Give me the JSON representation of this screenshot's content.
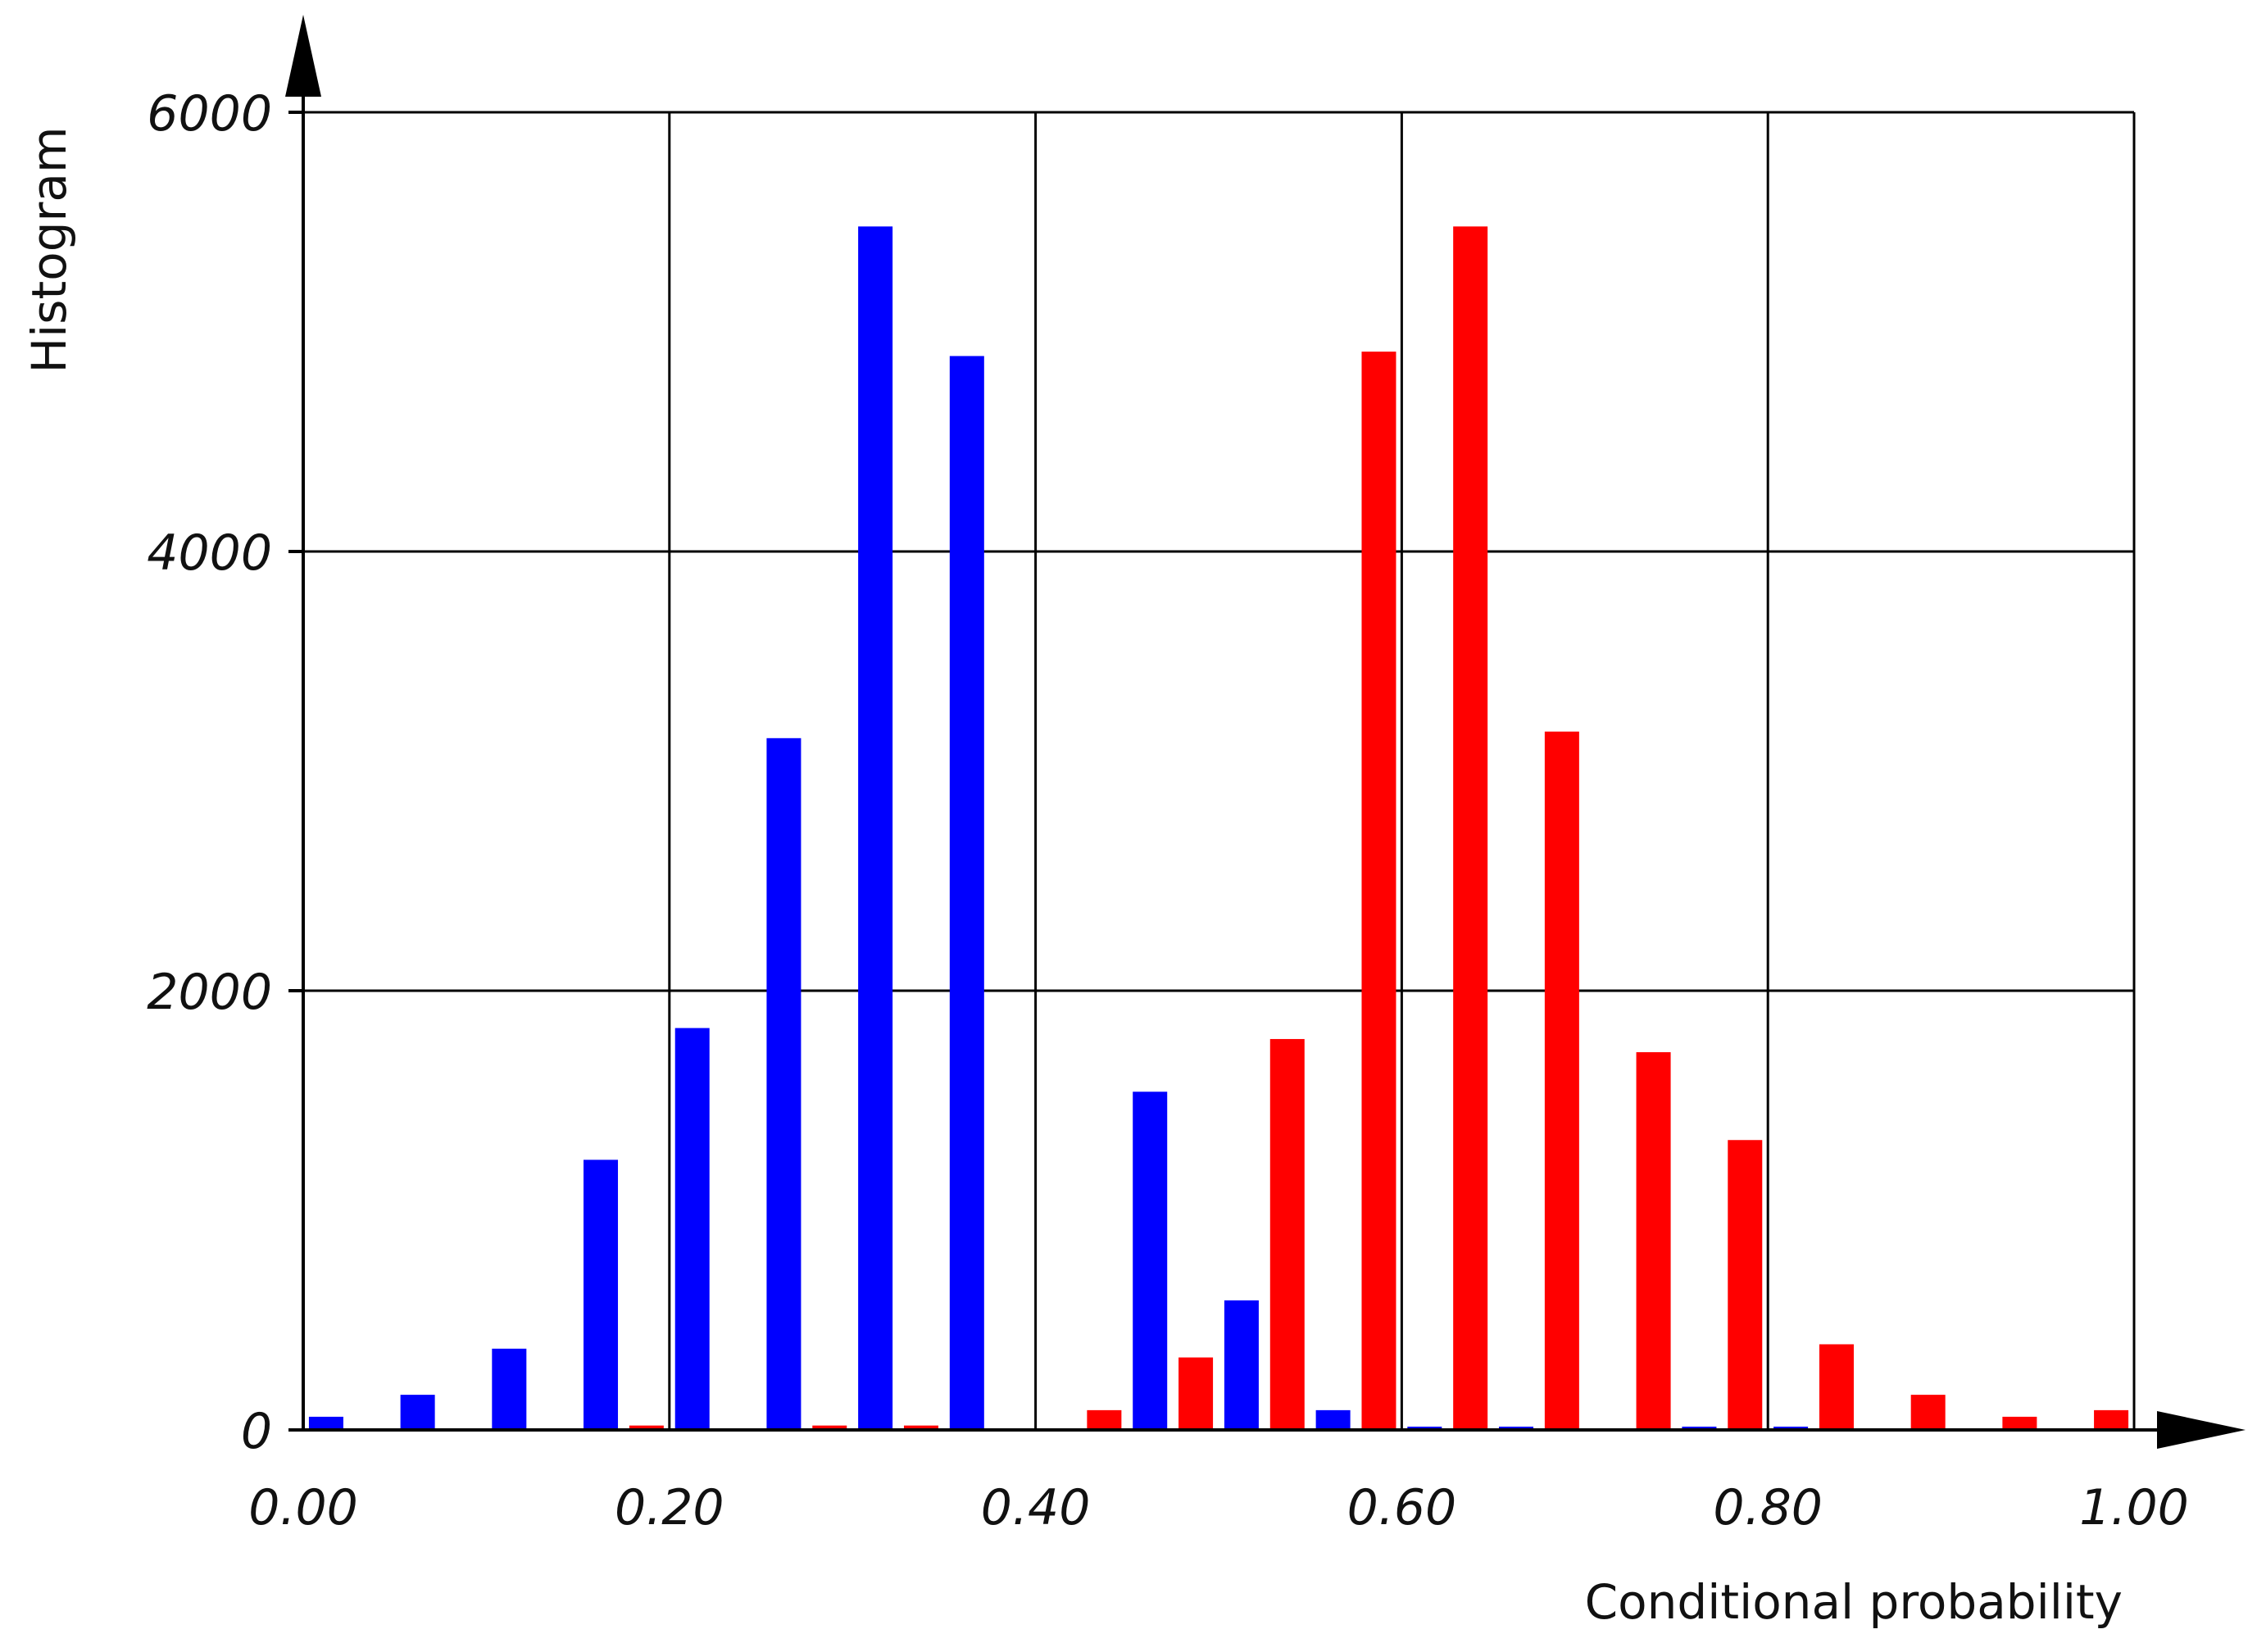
{
  "chart_data": {
    "type": "bar",
    "title": "",
    "xlabel": "Conditional probability",
    "ylabel": "Histogram",
    "xlim": [
      0.0,
      1.0
    ],
    "ylim": [
      0,
      6000
    ],
    "grid": true,
    "x_ticks": [
      "0.00",
      "0.20",
      "0.40",
      "0.60",
      "0.80",
      "1.00"
    ],
    "y_ticks": [
      "0",
      "2000",
      "4000",
      "6000"
    ],
    "bin_width": 0.05,
    "bins": [
      0.0,
      0.05,
      0.1,
      0.15,
      0.2,
      0.25,
      0.3,
      0.35,
      0.4,
      0.45,
      0.5,
      0.55,
      0.6,
      0.65,
      0.7,
      0.75,
      0.8,
      0.85,
      0.9,
      0.95
    ],
    "series": [
      {
        "color": "#0000ff",
        "values": [
          60,
          160,
          370,
          1230,
          1830,
          3150,
          5480,
          4890,
          0,
          1540,
          590,
          90,
          15,
          15,
          0,
          15,
          15,
          0,
          0,
          0
        ]
      },
      {
        "color": "#ff0000",
        "values": [
          0,
          0,
          0,
          20,
          0,
          20,
          20,
          0,
          90,
          330,
          1780,
          4910,
          5480,
          3180,
          1720,
          1320,
          390,
          160,
          60,
          90
        ]
      }
    ]
  }
}
